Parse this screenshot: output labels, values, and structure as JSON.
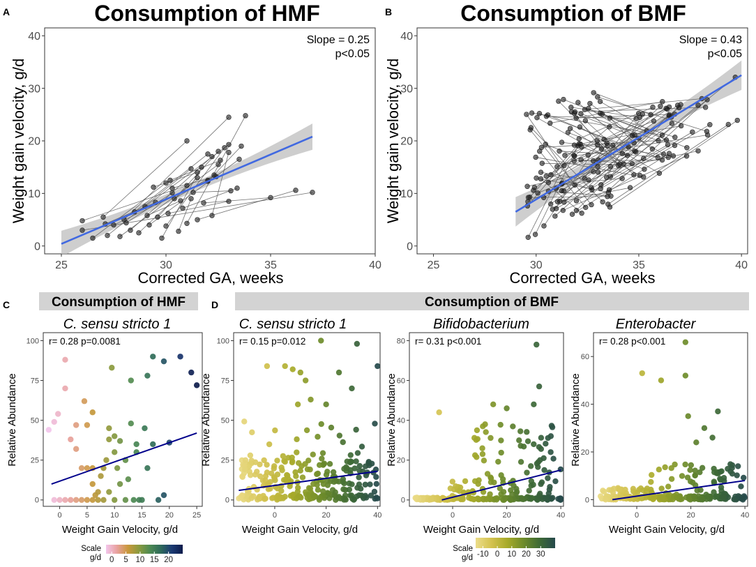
{
  "figure": {
    "panel_letters": [
      "A",
      "B",
      "C",
      "D"
    ],
    "banner_c": "Consumption of HMF",
    "banner_d": "Consumption of BMF"
  },
  "colors": {
    "regression_top": "#4169e1",
    "regression_bottom": "#00008b",
    "points": "#1a1a1a",
    "ci_band": "#bdbdbd",
    "banner": "#d3d3d3",
    "scale_c": [
      "#f3c6ec",
      "#e8a19e",
      "#c9983c",
      "#8a9a3e",
      "#4d8a53",
      "#2e6a5a",
      "#1b3a73",
      "#0d1b4b"
    ],
    "scale_d": [
      "#ecdd8a",
      "#d3c24f",
      "#a7aa2a",
      "#6e8c2a",
      "#3f6b35",
      "#25494b"
    ]
  },
  "chart_data": [
    {
      "id": "A",
      "type": "line",
      "title": "Consumption of HMF",
      "xlabel": "Corrected GA, weeks",
      "ylabel": "Weight gain velocity, g/d",
      "xlim": [
        24.2,
        40
      ],
      "ylim": [
        -1.5,
        41.5
      ],
      "xticks": [
        25,
        30,
        35,
        40
      ],
      "yticks": [
        0,
        10,
        20,
        30,
        40
      ],
      "slope_label": "Slope = 0.25",
      "p_label": "p<0.05",
      "fit": {
        "x": [
          25,
          37
        ],
        "y": [
          0.4,
          20.8
        ],
        "ci": 2.5
      },
      "trajectories": [
        [
          [
            26,
            3
          ],
          [
            37,
            10.2
          ]
        ],
        [
          [
            26,
            4.8
          ],
          [
            31,
            11.5
          ]
        ],
        [
          [
            26.5,
            1.5
          ],
          [
            30,
            12
          ]
        ],
        [
          [
            27,
            5.5
          ],
          [
            31,
            20
          ]
        ],
        [
          [
            27.2,
            2
          ],
          [
            31.2,
            14.7
          ]
        ],
        [
          [
            27.5,
            4
          ],
          [
            32,
            12.5
          ]
        ],
        [
          [
            27.8,
            1.8
          ],
          [
            32.5,
            15.5
          ]
        ],
        [
          [
            28,
            5
          ],
          [
            33,
            24.5
          ]
        ],
        [
          [
            28.3,
            3
          ],
          [
            32.2,
            17
          ]
        ],
        [
          [
            28.5,
            6.5
          ],
          [
            32,
            17.5
          ]
        ],
        [
          [
            28.7,
            2.5
          ],
          [
            31.5,
            13
          ]
        ],
        [
          [
            29,
            7.5
          ],
          [
            33,
            19.3
          ]
        ],
        [
          [
            29.2,
            4
          ],
          [
            33.5,
            16.5
          ]
        ],
        [
          [
            29.4,
            11.2
          ],
          [
            31.5,
            14
          ]
        ],
        [
          [
            29.6,
            5.5
          ],
          [
            32.5,
            18
          ]
        ],
        [
          [
            29.8,
            1.5
          ],
          [
            31.7,
            15
          ]
        ],
        [
          [
            30,
            3.8
          ],
          [
            32.8,
            18.7
          ]
        ],
        [
          [
            30.1,
            6.2
          ],
          [
            33,
            8.5
          ]
        ],
        [
          [
            30.2,
            12.5
          ],
          [
            32.6,
            16.3
          ]
        ],
        [
          [
            30.4,
            9
          ],
          [
            32.3,
            13.5
          ]
        ],
        [
          [
            30.6,
            2.8
          ],
          [
            31.2,
            9
          ]
        ],
        [
          [
            30.8,
            7.2
          ],
          [
            33.4,
            11
          ]
        ],
        [
          [
            31,
            4.3
          ],
          [
            33.8,
            24.8
          ]
        ],
        [
          [
            31.3,
            10.2
          ],
          [
            33.1,
            10.5
          ]
        ],
        [
          [
            31.5,
            5
          ],
          [
            36.2,
            10.6
          ]
        ],
        [
          [
            31.8,
            8.2
          ],
          [
            35,
            9.2
          ]
        ],
        [
          [
            32,
            12.3
          ],
          [
            33.6,
            19
          ]
        ],
        [
          [
            32.2,
            5.8
          ],
          [
            33,
            17.8
          ]
        ],
        [
          [
            27.1,
            4.2
          ],
          [
            29.5,
            8.3
          ]
        ],
        [
          [
            28.1,
            4.4
          ],
          [
            30.3,
            10.1
          ]
        ],
        [
          [
            29.1,
            5.8
          ],
          [
            30.7,
            8.6
          ]
        ],
        [
          [
            30.3,
            11
          ],
          [
            32.4,
            13.2
          ]
        ]
      ]
    },
    {
      "id": "B",
      "type": "line",
      "title": "Consumption of BMF",
      "xlabel": "Corrected GA, weeks",
      "ylabel": "Weight gain velocity, g/d",
      "xlim": [
        24.2,
        40.3
      ],
      "ylim": [
        -1.5,
        41.5
      ],
      "xticks": [
        25,
        30,
        35,
        40
      ],
      "yticks": [
        0,
        10,
        20,
        30,
        40
      ],
      "slope_label": "Slope = 0.43",
      "p_label": "p<0.05",
      "fit": {
        "x": [
          29,
          40
        ],
        "y": [
          6.5,
          32.5
        ],
        "ci": 2.8
      },
      "n_trajectories": 95,
      "seed": 7
    },
    {
      "id": "C",
      "type": "scatter",
      "title": "C. sensu stricto 1",
      "xlabel": "Weight Gain Velocity, g/d",
      "ylabel": "Relative Abundance",
      "xlim": [
        -3,
        26
      ],
      "ylim": [
        -4,
        105
      ],
      "xticks": [
        0,
        5,
        10,
        15,
        20,
        25
      ],
      "yticks": [
        0,
        25,
        50,
        75,
        100
      ],
      "stat_label": "r= 0.28 p=0.0081",
      "fit": {
        "x": [
          -1.5,
          25
        ],
        "y": [
          10,
          42
        ]
      },
      "color_range": [
        -2,
        25
      ],
      "scale": {
        "title": "Scale",
        "units": "g/d",
        "ticks": [
          0,
          5,
          10,
          15,
          20
        ],
        "range": [
          -2,
          25
        ]
      },
      "points": [
        [
          -2,
          44
        ],
        [
          -1,
          0
        ],
        [
          -1,
          49
        ],
        [
          -0.3,
          54
        ],
        [
          0,
          0
        ],
        [
          1,
          0
        ],
        [
          1,
          88
        ],
        [
          1,
          70
        ],
        [
          2,
          38
        ],
        [
          2,
          0
        ],
        [
          3,
          0
        ],
        [
          3,
          47
        ],
        [
          3,
          32
        ],
        [
          4,
          0
        ],
        [
          4,
          20
        ],
        [
          4.5,
          62
        ],
        [
          5,
          0
        ],
        [
          5,
          20
        ],
        [
          5,
          47
        ],
        [
          6,
          0
        ],
        [
          6,
          10
        ],
        [
          6,
          20
        ],
        [
          6,
          55
        ],
        [
          6.5,
          3
        ],
        [
          7,
          5
        ],
        [
          7,
          0
        ],
        [
          7.5,
          15
        ],
        [
          8,
          20
        ],
        [
          8,
          0
        ],
        [
          8.5,
          25
        ],
        [
          9,
          38
        ],
        [
          9,
          5
        ],
        [
          9,
          45
        ],
        [
          9.5,
          83
        ],
        [
          10,
          0
        ],
        [
          10,
          30
        ],
        [
          10,
          40
        ],
        [
          10.5,
          20
        ],
        [
          11,
          10
        ],
        [
          11,
          37
        ],
        [
          12,
          25
        ],
        [
          12,
          0
        ],
        [
          12.5,
          13
        ],
        [
          13,
          48
        ],
        [
          13,
          75
        ],
        [
          13.5,
          0
        ],
        [
          14,
          30
        ],
        [
          14,
          35
        ],
        [
          14.5,
          0
        ],
        [
          15,
          0
        ],
        [
          15.5,
          45
        ],
        [
          16,
          20
        ],
        [
          16,
          78
        ],
        [
          17,
          90
        ],
        [
          17,
          35
        ],
        [
          18,
          0
        ],
        [
          19,
          87
        ],
        [
          19,
          3
        ],
        [
          20,
          36
        ],
        [
          22,
          90
        ],
        [
          24,
          80
        ],
        [
          25,
          72
        ]
      ]
    },
    {
      "id": "D1",
      "type": "scatter",
      "title": "C. sensu stricto 1",
      "xlabel": "Weight Gain Velocity, g/d",
      "ylabel": "Relative Abundance",
      "xlim": [
        -16,
        41
      ],
      "ylim": [
        -4,
        105
      ],
      "xticks": [
        0,
        20,
        40
      ],
      "yticks": [
        0,
        25,
        50,
        75,
        100
      ],
      "stat_label": "r= 0.15 p=0.012",
      "fit": {
        "x": [
          -14,
          40
        ],
        "y": [
          6,
          18
        ]
      },
      "color_range": [
        -15,
        40
      ],
      "seed": 11,
      "n_points": 280,
      "profile": "csensu",
      "extra_points": [
        [
          -3,
          84
        ],
        [
          4,
          84
        ],
        [
          7,
          82
        ],
        [
          10,
          80
        ],
        [
          12,
          75
        ],
        [
          18,
          100
        ],
        [
          32,
          98
        ],
        [
          40,
          84
        ],
        [
          25,
          80
        ],
        [
          30,
          70
        ],
        [
          20,
          60
        ],
        [
          14,
          63
        ],
        [
          9,
          60
        ]
      ]
    },
    {
      "id": "D2",
      "type": "scatter",
      "title": "Bifidobacterium",
      "xlabel": "Weight Gain Velocity, g/d",
      "ylabel": "Relative Abundance",
      "xlim": [
        -16,
        41
      ],
      "ylim": [
        -3.2,
        84
      ],
      "xticks": [
        0,
        20,
        40
      ],
      "yticks": [
        0,
        20,
        40,
        60,
        80
      ],
      "stat_label": "r= 0.31 p<0.001",
      "fit": {
        "x": [
          -4,
          40
        ],
        "y": [
          0,
          15
        ]
      },
      "color_range": [
        -15,
        40
      ],
      "seed": 23,
      "n_points": 260,
      "profile": "bifido",
      "extra_points": [
        [
          -5,
          44
        ],
        [
          31,
          78
        ],
        [
          32,
          57
        ],
        [
          30,
          48
        ],
        [
          15,
          48
        ],
        [
          20,
          46
        ],
        [
          9,
          35
        ],
        [
          12,
          38
        ]
      ]
    },
    {
      "id": "D3",
      "type": "scatter",
      "title": "Enterobacter",
      "xlabel": "Weight Gain Velocity, g/d",
      "ylabel": "Relative Abundance",
      "xlim": [
        -16,
        41
      ],
      "ylim": [
        -2.8,
        70
      ],
      "xticks": [
        0,
        20,
        40
      ],
      "yticks": [
        0,
        20,
        40,
        60
      ],
      "stat_label": "r= 0.28 p<0.001",
      "fit": {
        "x": [
          -9,
          40
        ],
        "y": [
          0,
          8
        ]
      },
      "color_range": [
        -15,
        40
      ],
      "scale": {
        "title": "Scale",
        "units": "g/d",
        "ticks": [
          -10,
          0,
          10,
          20,
          30
        ],
        "range": [
          -15,
          40
        ]
      },
      "seed": 37,
      "n_points": 250,
      "profile": "entero",
      "extra_points": [
        [
          18,
          66
        ],
        [
          18,
          52
        ],
        [
          2,
          53
        ],
        [
          9,
          50
        ],
        [
          19,
          35
        ],
        [
          25,
          30
        ],
        [
          30,
          37
        ],
        [
          22,
          24
        ],
        [
          28,
          26
        ]
      ]
    }
  ]
}
